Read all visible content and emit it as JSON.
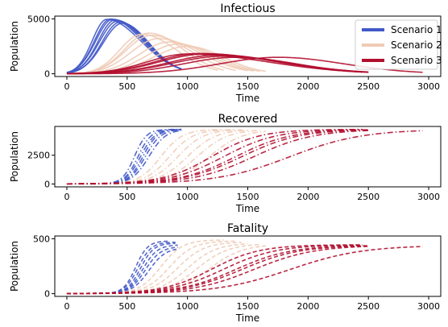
{
  "colors": {
    "Scenario 1": "#4259c8",
    "Scenario 2": "#efcbb6",
    "Scenario 3": "#b20f30",
    "axes": "#000000"
  },
  "chart_data": [
    {
      "type": "line",
      "title": "Infectious",
      "xlabel": "Time",
      "ylabel": "Population",
      "xlim": [
        -100,
        3100
      ],
      "ylim": [
        -250,
        5250
      ],
      "xticks": [
        0,
        500,
        1000,
        1500,
        2000,
        2500,
        3000
      ],
      "yticks": [
        0,
        5000
      ],
      "line_style": "solid",
      "legend": {
        "position": "top-right",
        "entries": [
          "Scenario 1",
          "Scenario 2",
          "Scenario 3"
        ]
      },
      "scenarios": [
        {
          "name": "Scenario 1",
          "curves": [
            {
              "kind": "peak",
              "peak_t": 330,
              "peak_v": 4950,
              "end": 950,
              "w": 120
            },
            {
              "kind": "peak",
              "peak_t": 360,
              "peak_v": 4980,
              "end": 950,
              "w": 130
            },
            {
              "kind": "peak",
              "peak_t": 380,
              "peak_v": 4960,
              "end": 950,
              "w": 140
            },
            {
              "kind": "peak",
              "peak_t": 400,
              "peak_v": 4900,
              "end": 950,
              "w": 140
            },
            {
              "kind": "peak",
              "peak_t": 420,
              "peak_v": 4800,
              "end": 950,
              "w": 150
            },
            {
              "kind": "peak",
              "peak_t": 440,
              "peak_v": 4700,
              "end": 950,
              "w": 150
            },
            {
              "kind": "peak",
              "peak_t": 460,
              "peak_v": 4600,
              "end": 950,
              "w": 160
            }
          ]
        },
        {
          "name": "Scenario 2",
          "curves": [
            {
              "kind": "peak",
              "peak_t": 620,
              "peak_v": 3600,
              "end": 1250,
              "w": 180
            },
            {
              "kind": "peak",
              "peak_t": 680,
              "peak_v": 3700,
              "end": 1300,
              "w": 200
            },
            {
              "kind": "peak",
              "peak_t": 700,
              "peak_v": 3500,
              "end": 1400,
              "w": 210
            },
            {
              "kind": "peak",
              "peak_t": 760,
              "peak_v": 3200,
              "end": 1500,
              "w": 230
            },
            {
              "kind": "peak",
              "peak_t": 850,
              "peak_v": 2900,
              "end": 1550,
              "w": 250
            },
            {
              "kind": "peak",
              "peak_t": 920,
              "peak_v": 2700,
              "end": 1600,
              "w": 260
            },
            {
              "kind": "peak",
              "peak_t": 1000,
              "peak_v": 2500,
              "end": 1650,
              "w": 280
            }
          ]
        },
        {
          "name": "Scenario 3",
          "curves": [
            {
              "kind": "peak",
              "peak_t": 1000,
              "peak_v": 1800,
              "end": 2450,
              "w": 330
            },
            {
              "kind": "peak",
              "peak_t": 1100,
              "peak_v": 1850,
              "end": 2500,
              "w": 360
            },
            {
              "kind": "peak",
              "peak_t": 1150,
              "peak_v": 1800,
              "end": 2450,
              "w": 380
            },
            {
              "kind": "peak",
              "peak_t": 1250,
              "peak_v": 1700,
              "end": 2450,
              "w": 400
            },
            {
              "kind": "peak",
              "peak_t": 1300,
              "peak_v": 1600,
              "end": 2500,
              "w": 420
            },
            {
              "kind": "peak",
              "peak_t": 1400,
              "peak_v": 1500,
              "end": 2500,
              "w": 430
            },
            {
              "kind": "peak",
              "peak_t": 1750,
              "peak_v": 1500,
              "end": 2950,
              "w": 480
            }
          ]
        }
      ]
    },
    {
      "type": "line",
      "title": "Recovered",
      "xlabel": "Time",
      "ylabel": "Population",
      "xlim": [
        -100,
        3100
      ],
      "ylim": [
        -250,
        5000
      ],
      "xticks": [
        0,
        500,
        1000,
        1500,
        2000,
        2500,
        3000
      ],
      "yticks": [
        0,
        2500
      ],
      "line_style": "dashdot",
      "scenarios": [
        {
          "name": "Scenario 1",
          "curves": [
            {
              "kind": "sig",
              "mid": 560,
              "top": 4750,
              "end": 950,
              "w": 50
            },
            {
              "kind": "sig",
              "mid": 590,
              "top": 4750,
              "end": 950,
              "w": 55
            },
            {
              "kind": "sig",
              "mid": 610,
              "top": 4750,
              "end": 950,
              "w": 60
            },
            {
              "kind": "sig",
              "mid": 630,
              "top": 4750,
              "end": 950,
              "w": 60
            },
            {
              "kind": "sig",
              "mid": 650,
              "top": 4750,
              "end": 950,
              "w": 65
            },
            {
              "kind": "sig",
              "mid": 680,
              "top": 4750,
              "end": 950,
              "w": 70
            }
          ]
        },
        {
          "name": "Scenario 2",
          "curves": [
            {
              "kind": "sig",
              "mid": 780,
              "top": 4750,
              "end": 1300,
              "w": 90
            },
            {
              "kind": "sig",
              "mid": 850,
              "top": 4750,
              "end": 1400,
              "w": 100
            },
            {
              "kind": "sig",
              "mid": 920,
              "top": 4750,
              "end": 1450,
              "w": 110
            },
            {
              "kind": "sig",
              "mid": 1000,
              "top": 4750,
              "end": 1500,
              "w": 120
            },
            {
              "kind": "sig",
              "mid": 1080,
              "top": 4750,
              "end": 1600,
              "w": 130
            },
            {
              "kind": "sig",
              "mid": 1180,
              "top": 4750,
              "end": 1650,
              "w": 140
            }
          ]
        },
        {
          "name": "Scenario 3",
          "curves": [
            {
              "kind": "sig",
              "mid": 1200,
              "top": 4750,
              "end": 2450,
              "w": 200
            },
            {
              "kind": "sig",
              "mid": 1300,
              "top": 4750,
              "end": 2450,
              "w": 220
            },
            {
              "kind": "sig",
              "mid": 1400,
              "top": 4750,
              "end": 2500,
              "w": 230
            },
            {
              "kind": "sig",
              "mid": 1450,
              "top": 4750,
              "end": 2500,
              "w": 240
            },
            {
              "kind": "sig",
              "mid": 1550,
              "top": 4750,
              "end": 2500,
              "w": 250
            },
            {
              "kind": "sig",
              "mid": 1850,
              "top": 4750,
              "end": 2950,
              "w": 300
            }
          ]
        }
      ]
    },
    {
      "type": "line",
      "title": "Fatality",
      "xlabel": "Time",
      "ylabel": "Population",
      "xlim": [
        -100,
        3100
      ],
      "ylim": [
        -25,
        525
      ],
      "xticks": [
        0,
        500,
        1000,
        1500,
        2000,
        2500,
        3000
      ],
      "yticks": [
        0,
        500
      ],
      "line_style": "dashed",
      "scenarios": [
        {
          "name": "Scenario 1",
          "curves": [
            {
              "kind": "sig",
              "mid": 570,
              "top": 480,
              "end": 850,
              "w": 50
            },
            {
              "kind": "sig",
              "mid": 590,
              "top": 470,
              "end": 900,
              "w": 55
            },
            {
              "kind": "sig",
              "mid": 610,
              "top": 460,
              "end": 900,
              "w": 55
            },
            {
              "kind": "sig",
              "mid": 630,
              "top": 445,
              "end": 920,
              "w": 60
            },
            {
              "kind": "sig",
              "mid": 650,
              "top": 430,
              "end": 920,
              "w": 65
            },
            {
              "kind": "sig",
              "mid": 680,
              "top": 420,
              "end": 930,
              "w": 70
            }
          ]
        },
        {
          "name": "Scenario 2",
          "curves": [
            {
              "kind": "sig",
              "mid": 780,
              "top": 490,
              "end": 1300,
              "w": 90
            },
            {
              "kind": "sig",
              "mid": 850,
              "top": 480,
              "end": 1400,
              "w": 100
            },
            {
              "kind": "sig",
              "mid": 920,
              "top": 470,
              "end": 1450,
              "w": 110
            },
            {
              "kind": "sig",
              "mid": 1000,
              "top": 460,
              "end": 1500,
              "w": 120
            },
            {
              "kind": "sig",
              "mid": 1080,
              "top": 455,
              "end": 1600,
              "w": 130
            },
            {
              "kind": "sig",
              "mid": 1180,
              "top": 450,
              "end": 1650,
              "w": 140
            }
          ]
        },
        {
          "name": "Scenario 3",
          "curves": [
            {
              "kind": "sig",
              "mid": 1200,
              "top": 445,
              "end": 2450,
              "w": 200
            },
            {
              "kind": "sig",
              "mid": 1300,
              "top": 445,
              "end": 2450,
              "w": 220
            },
            {
              "kind": "sig",
              "mid": 1400,
              "top": 440,
              "end": 2500,
              "w": 230
            },
            {
              "kind": "sig",
              "mid": 1450,
              "top": 440,
              "end": 2500,
              "w": 240
            },
            {
              "kind": "sig",
              "mid": 1550,
              "top": 440,
              "end": 2500,
              "w": 250
            },
            {
              "kind": "sig",
              "mid": 1850,
              "top": 440,
              "end": 2950,
              "w": 300
            }
          ]
        }
      ]
    }
  ]
}
